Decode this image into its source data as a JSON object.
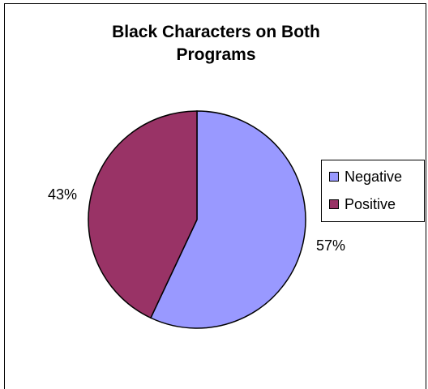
{
  "chart_data": {
    "type": "pie",
    "title_lines": [
      "Black Characters on Both",
      "Programs"
    ],
    "slices": [
      {
        "name": "Negative",
        "value": 57,
        "label": "57%",
        "color": "#9999ff"
      },
      {
        "name": "Positive",
        "value": 43,
        "label": "43%",
        "color": "#993366"
      }
    ],
    "start_angle_deg": 0,
    "direction": "clockwise",
    "legend": {
      "placement": "right",
      "entries": [
        "Negative",
        "Positive"
      ]
    }
  }
}
